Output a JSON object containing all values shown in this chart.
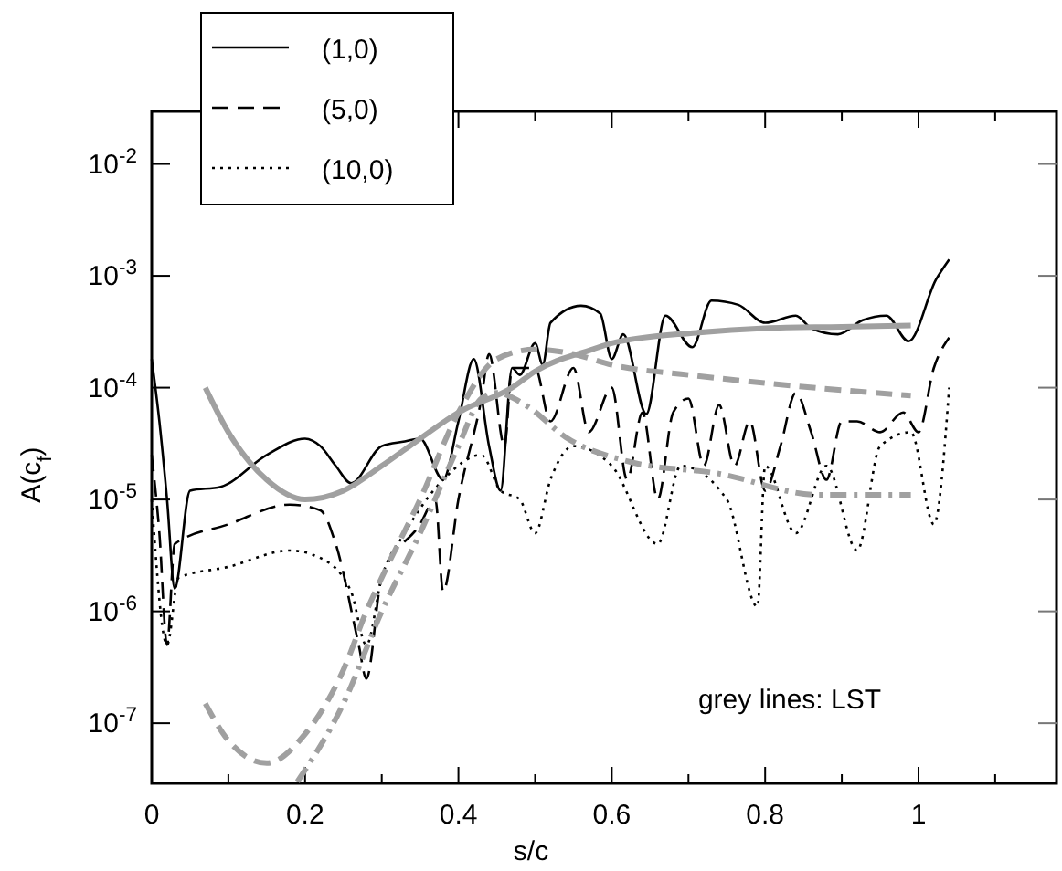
{
  "chart_data": {
    "type": "line",
    "xlabel": "s/c",
    "ylabel": "A(c$_{f}$)",
    "log": "y",
    "xlim": [
      0,
      1.18
    ],
    "ylim": [
      2.9e-08,
      0.0295
    ],
    "xticks": [
      0,
      {
        "value": 0.1,
        "label": null
      },
      0.2,
      {
        "value": 0.3,
        "label": null
      },
      0.4,
      {
        "value": 0.5,
        "label": null
      },
      0.6,
      {
        "value": 0.7,
        "label": null
      },
      0.8,
      {
        "value": 0.9,
        "label": null
      },
      1,
      {
        "value": 1.1,
        "label": null
      }
    ],
    "yticks": [
      {
        "value": 1e-07,
        "label": "10$^{-7}$"
      },
      {
        "value": 1e-06,
        "label": "10$^{-6}$"
      },
      {
        "value": 1e-05,
        "label": "10$^{-5}$"
      },
      {
        "value": 0.0001,
        "label": "10$^{-4}$"
      },
      {
        "value": 0.001,
        "label": "10$^{-3}$"
      },
      {
        "value": 0.01,
        "label": "10$^{-2}$"
      }
    ],
    "grid": false,
    "legend": "top left",
    "annotations": [
      "grey lines: LST"
    ],
    "series": [
      {
        "name": "(1,0)",
        "color": "#000000",
        "line_style": "solid",
        "x": [
          0,
          0.01,
          0.02,
          0.03,
          0.05,
          0.09,
          0.15,
          0.2,
          0.22,
          0.24,
          0.26,
          0.3,
          0.33,
          0.35,
          0.38,
          0.4,
          0.42,
          0.44,
          0.455,
          0.47,
          0.48,
          0.5,
          0.51,
          0.52,
          0.56,
          0.585,
          0.6,
          0.615,
          0.645,
          0.67,
          0.705,
          0.73,
          0.765,
          0.8,
          0.84,
          0.86,
          0.895,
          0.927,
          0.958,
          0.987,
          1.023,
          1.04
        ],
        "values": [
          0.00018,
          5e-05,
          1e-05,
          1.6e-06,
          1.2e-05,
          1.3e-05,
          2.5e-05,
          3.5e-05,
          3e-05,
          2e-05,
          1.4e-05,
          3e-05,
          3.3e-05,
          3.5e-05,
          1.5e-05,
          5e-05,
          0.00018,
          3e-05,
          1.2e-05,
          0.00015,
          0.00013,
          0.00025,
          0.00016,
          0.00038,
          0.00054,
          0.00046,
          0.00018,
          0.0003,
          5.8e-05,
          0.00044,
          0.00023,
          0.0006,
          0.00055,
          0.00038,
          0.00044,
          0.00034,
          0.0003,
          0.0004,
          0.00044,
          0.00026,
          0.00093,
          0.0014
        ]
      },
      {
        "name": "(5,0)",
        "color": "#000000",
        "line_style": "dashed",
        "x": [
          0,
          0.01,
          0.02,
          0.03,
          0.1,
          0.18,
          0.22,
          0.24,
          0.27,
          0.28,
          0.3,
          0.35,
          0.37,
          0.38,
          0.4,
          0.43,
          0.44,
          0.46,
          0.47,
          0.5,
          0.52,
          0.55,
          0.57,
          0.6,
          0.62,
          0.64,
          0.66,
          0.68,
          0.7,
          0.72,
          0.74,
          0.76,
          0.78,
          0.8,
          0.82,
          0.84,
          0.86,
          0.88,
          0.9,
          0.92,
          0.95,
          0.98,
          1,
          1.02,
          1.04
        ],
        "values": [
          2.5e-05,
          5e-06,
          5e-07,
          4e-06,
          6e-06,
          9e-06,
          8e-06,
          4e-06,
          5e-07,
          2.5e-07,
          2e-06,
          6e-06,
          1e-05,
          1.5e-06,
          1e-05,
          8e-05,
          0.0002,
          3e-05,
          0.00015,
          0.00015,
          5e-05,
          0.00015,
          4e-05,
          0.0001,
          1.5e-05,
          6e-05,
          1e-05,
          6e-05,
          8e-05,
          2e-05,
          7e-05,
          2e-05,
          5e-05,
          1.2e-05,
          3e-05,
          9e-05,
          4e-05,
          1.5e-05,
          5e-05,
          5e-05,
          4e-05,
          6e-05,
          4e-05,
          0.00015,
          0.00028
        ]
      },
      {
        "name": "(10,0)",
        "color": "#000000",
        "line_style": "dotted",
        "x": [
          0,
          0.02,
          0.035,
          0.1,
          0.18,
          0.22,
          0.26,
          0.28,
          0.3,
          0.33,
          0.38,
          0.43,
          0.455,
          0.48,
          0.5,
          0.52,
          0.55,
          0.6,
          0.66,
          0.69,
          0.75,
          0.79,
          0.8,
          0.84,
          0.88,
          0.92,
          0.95,
          0.99,
          1.02,
          1.04
        ],
        "values": [
          1e-05,
          5e-07,
          2e-06,
          2.5e-06,
          3.5e-06,
          3e-06,
          1.5e-06,
          5e-07,
          2e-06,
          5e-06,
          1.5e-05,
          2.5e-05,
          1.2e-05,
          1e-05,
          5e-06,
          1.5e-05,
          3e-05,
          2e-05,
          4e-06,
          2e-05,
          1e-05,
          1.1e-06,
          2e-05,
          5e-06,
          2e-05,
          3.5e-06,
          3e-05,
          4e-05,
          6e-06,
          0.0001
        ]
      },
      {
        "color": "#a0a0a0",
        "line_style": "solid",
        "x": [
          0.07,
          0.1,
          0.15,
          0.2,
          0.25,
          0.3,
          0.35,
          0.4,
          0.47,
          0.5,
          0.575,
          0.6,
          0.71,
          0.8,
          0.9,
          0.99
        ],
        "values": [
          0.0001,
          4e-05,
          1.5e-05,
          1e-05,
          1.2e-05,
          2e-05,
          3.5e-05,
          6e-05,
          0.0001,
          0.00014,
          0.00022,
          0.00025,
          0.00031,
          0.00034,
          0.00035,
          0.00036
        ]
      },
      {
        "color": "#a0a0a0",
        "line_style": "dashed",
        "x": [
          0.07,
          0.1,
          0.15,
          0.2,
          0.25,
          0.28,
          0.3,
          0.35,
          0.4,
          0.45,
          0.5,
          0.55,
          0.6,
          0.7,
          0.8,
          0.9,
          0.99
        ],
        "values": [
          1.5e-07,
          7e-08,
          4.4e-08,
          8e-08,
          3e-07,
          1e-06,
          2e-06,
          1e-05,
          6e-05,
          0.00018,
          0.00022,
          0.0002,
          0.00016,
          0.00013,
          0.00011,
          9.5e-05,
          8.5e-05
        ]
      },
      {
        "color": "#a0a0a0",
        "line_style": "dashdot",
        "x": [
          0.19,
          0.25,
          0.3,
          0.35,
          0.4,
          0.43,
          0.45,
          0.49,
          0.54,
          0.62,
          0.74,
          0.87,
          0.99
        ],
        "values": [
          3e-08,
          1.5e-07,
          1e-06,
          5e-06,
          3e-05,
          8e-05,
          9e-05,
          6.8e-05,
          3.6e-05,
          2.2e-05,
          1.7e-05,
          1.1e-05,
          1.1e-05
        ]
      }
    ]
  }
}
